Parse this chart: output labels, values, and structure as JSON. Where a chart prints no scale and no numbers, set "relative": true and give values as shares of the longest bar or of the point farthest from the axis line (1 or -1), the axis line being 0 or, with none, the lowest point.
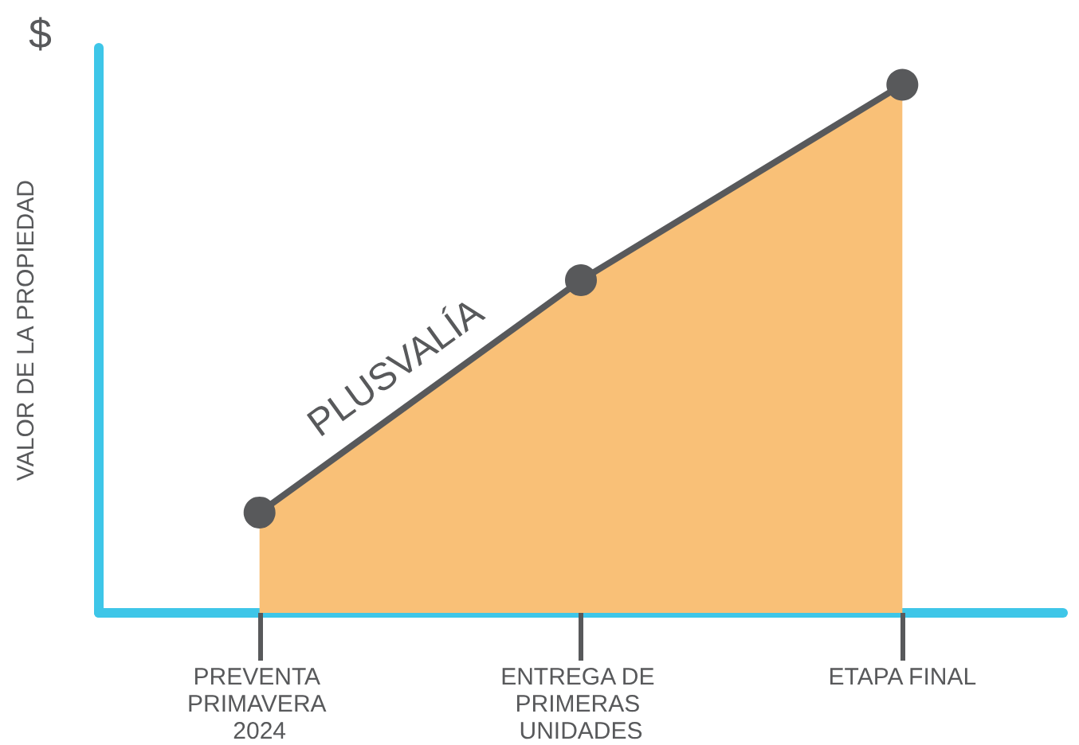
{
  "chart_data": {
    "type": "area",
    "relative": true,
    "ylabel": "VALOR DE LA PROPIEDAD",
    "categories": [
      "PREVENTA PRIMAVERA 2024",
      "ENTREGA DE PRIMERAS UNIDADES",
      "ETAPA FINAL"
    ],
    "series": [
      {
        "color": "#f9c077",
        "values": [
          0.19,
          0.63,
          1
        ],
        "marker": "circle"
      }
    ],
    "annotations": [
      "$",
      "PLUSVALÍA"
    ],
    "grid": false
  }
}
